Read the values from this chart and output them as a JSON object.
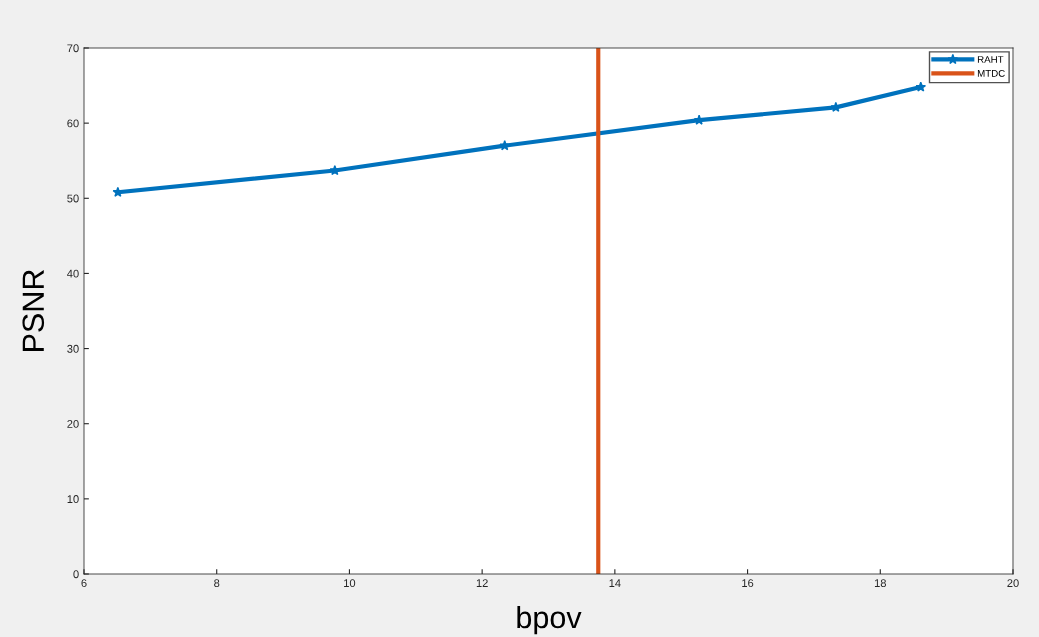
{
  "chart_data": {
    "type": "line",
    "xlabel": "bpov",
    "ylabel": "PSNR",
    "x": [
      6.51,
      9.78,
      12.34,
      15.27,
      17.33,
      18.61
    ],
    "series": [
      {
        "name": "RAHT",
        "color": "#0072bd",
        "values": [
          50.8,
          53.7,
          57.0,
          60.4,
          62.1,
          64.8
        ]
      },
      {
        "name": "MTDC",
        "color": "#d95319",
        "x": [
          13.75,
          13.75
        ],
        "values": [
          0,
          70
        ],
        "marker": "none"
      }
    ],
    "xlim": [
      6,
      20
    ],
    "xticks": [
      6,
      8,
      10,
      12,
      14,
      16,
      18,
      20
    ],
    "ylim": [
      0,
      70
    ],
    "yticks": [
      0,
      10,
      20,
      30,
      40,
      50,
      60,
      70
    ],
    "grid": false,
    "legend": "top right",
    "marker": "star",
    "line_style": "solid"
  }
}
